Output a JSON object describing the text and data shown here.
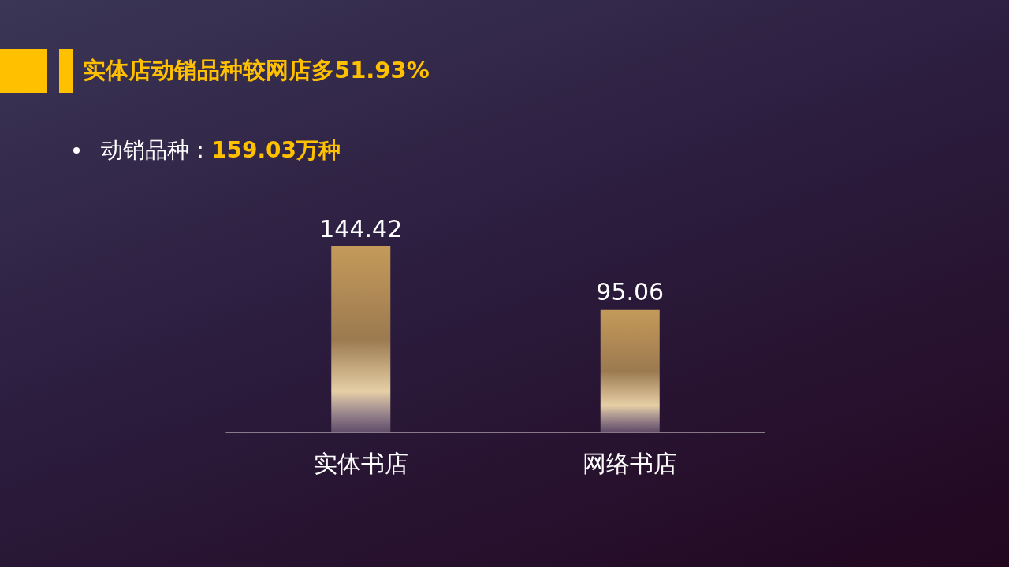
{
  "chart_data": {
    "type": "bar",
    "title": "实体店动销品种较网店多51.93%",
    "subtitle": "动销品种：159.03万种",
    "categories": [
      "实体书店",
      "网络书店"
    ],
    "values": [
      144.42,
      95.06
    ],
    "color": "#c49a5a",
    "data_labels": true
  }
}
